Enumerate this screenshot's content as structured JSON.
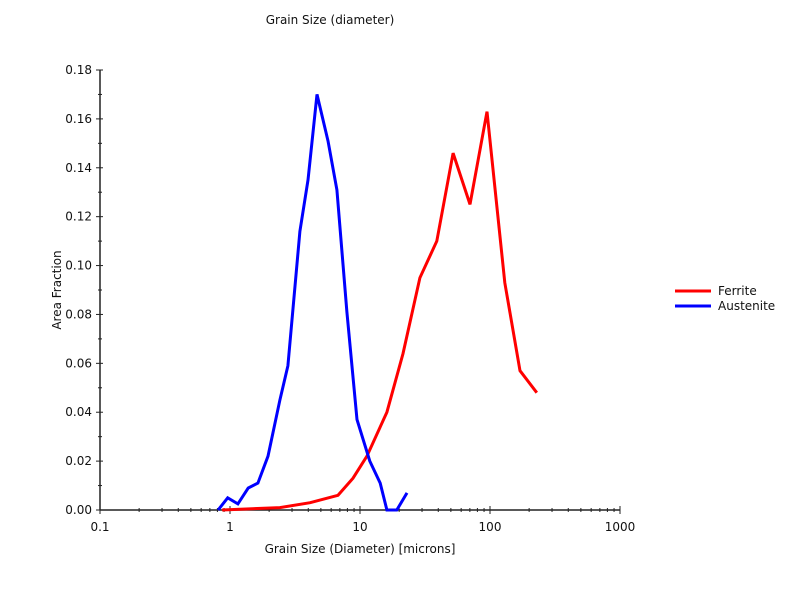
{
  "chart_data": {
    "type": "line",
    "title": "Grain Size (diameter)",
    "xlabel": "Grain Size (Diameter) [microns]",
    "ylabel": "Area Fraction",
    "xscale": "log",
    "xlim": [
      0.1,
      1000
    ],
    "ylim": [
      0,
      0.18
    ],
    "xticks": [
      "0.1",
      "1",
      "10",
      "100",
      "1000"
    ],
    "yticks": [
      "0.00",
      "0.02",
      "0.04",
      "0.06",
      "0.08",
      "0.10",
      "0.12",
      "0.14",
      "0.16",
      "0.18"
    ],
    "grid": false,
    "legend_position": "right",
    "series": [
      {
        "name": "Ferrite",
        "color": "#ff0000",
        "x": [
          0.87,
          2.42,
          4.13,
          6.77,
          8.83,
          11.3,
          16.1,
          21.4,
          28.9,
          39.0,
          52.0,
          70.2,
          94.9,
          130,
          170,
          229
        ],
        "y": [
          0,
          0.001,
          0.003,
          0.006,
          0.013,
          0.022,
          0.04,
          0.064,
          0.095,
          0.11,
          0.146,
          0.125,
          0.163,
          0.093,
          0.057,
          0.048
        ]
      },
      {
        "name": "Austenite",
        "color": "#0000ff",
        "x": [
          0.81,
          0.96,
          1.15,
          1.38,
          1.64,
          1.96,
          2.42,
          2.79,
          3.45,
          3.98,
          4.67,
          5.67,
          6.64,
          7.93,
          9.49,
          11.9,
          14.3,
          16.1,
          19.2,
          23.0
        ],
        "y": [
          0,
          0.005,
          0.0025,
          0.009,
          0.011,
          0.022,
          0.045,
          0.059,
          0.114,
          0.135,
          0.17,
          0.151,
          0.131,
          0.081,
          0.037,
          0.02,
          0.011,
          0,
          0,
          0.007
        ]
      }
    ]
  }
}
